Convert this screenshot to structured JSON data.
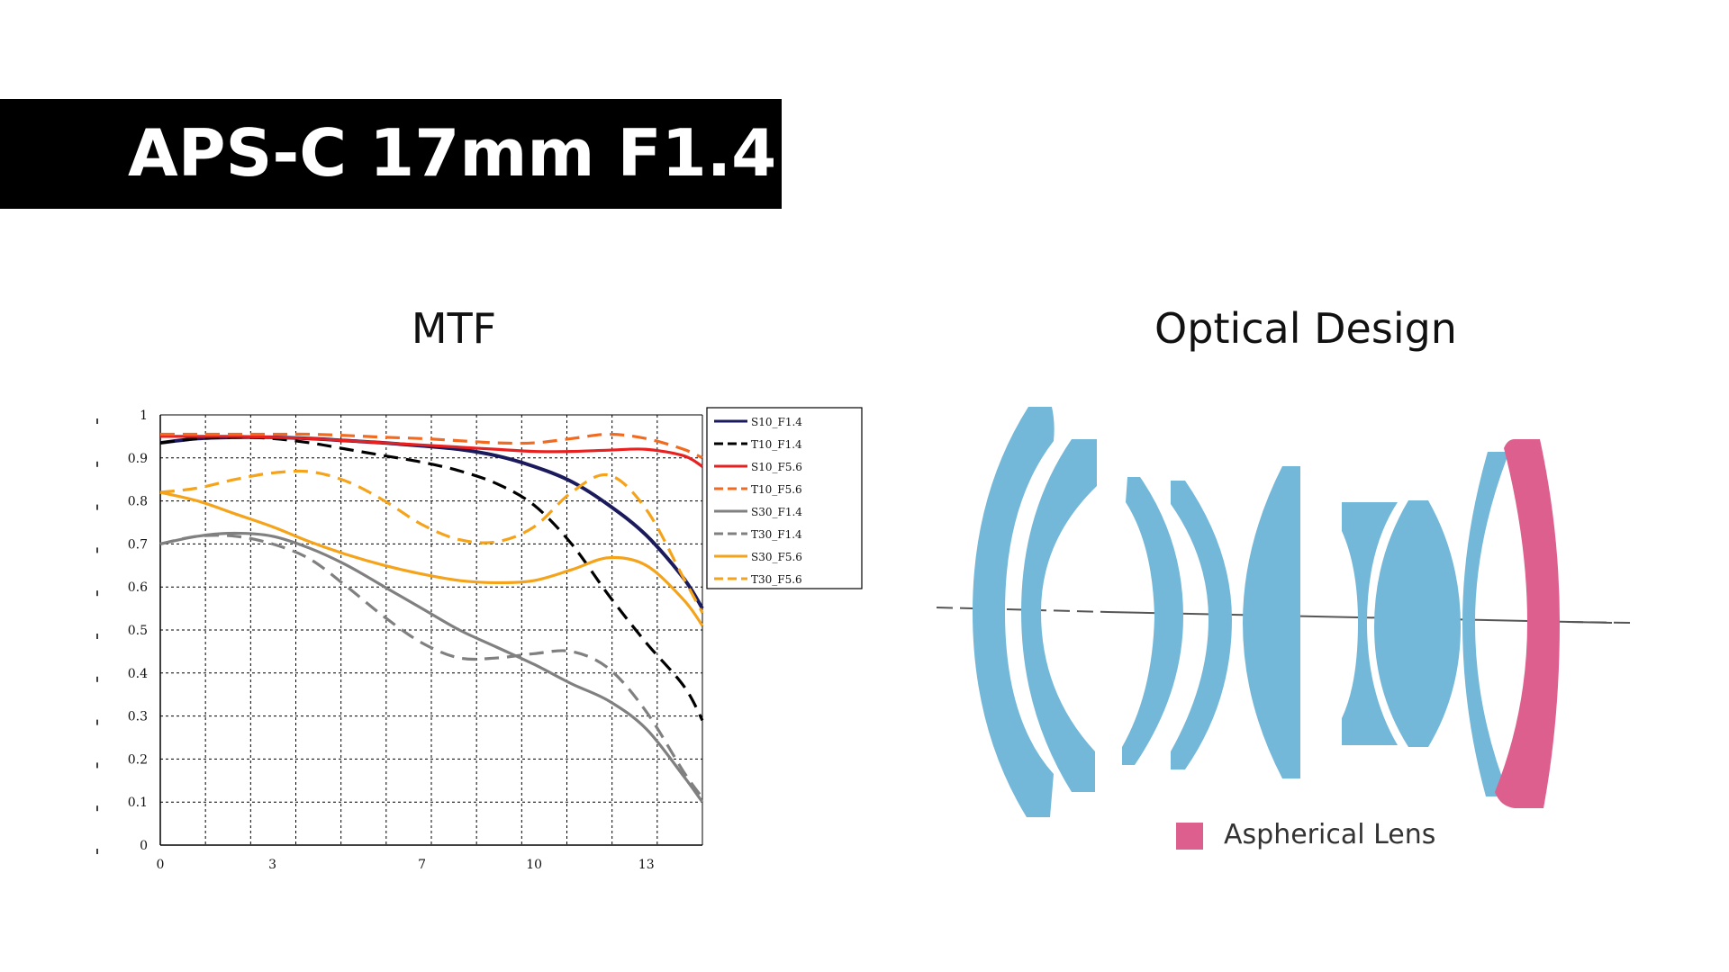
{
  "title": "APS-C 17mm F1.4",
  "mtf_heading": "MTF",
  "design_heading": "Optical Design",
  "aspherical_legend": {
    "label": "Aspherical Lens",
    "color": "#dd5f8e"
  },
  "lens_color": "#73b8d8",
  "aspherical_color": "#dd5f8e",
  "chart_data": {
    "type": "line",
    "title": "",
    "xlabel": "",
    "ylabel": "",
    "xlim": [
      0,
      14.5
    ],
    "ylim": [
      0,
      1
    ],
    "x_ticks": [
      0,
      3,
      7,
      10,
      13
    ],
    "y_ticks": [
      0,
      0.1,
      0.2,
      0.3,
      0.4,
      0.5,
      0.6,
      0.7,
      0.8,
      0.9,
      1
    ],
    "grid": true,
    "legend_position": "top-right",
    "series": [
      {
        "name": "S10_F1.4",
        "color": "#1a1a5c",
        "dash": false,
        "x": [
          0,
          1,
          2,
          3,
          4,
          5,
          6,
          7,
          8,
          9,
          10,
          11,
          12,
          13,
          14,
          14.5
        ],
        "y": [
          0.935,
          0.945,
          0.948,
          0.948,
          0.945,
          0.94,
          0.935,
          0.928,
          0.92,
          0.905,
          0.88,
          0.845,
          0.79,
          0.72,
          0.62,
          0.55
        ]
      },
      {
        "name": "T10_F1.4",
        "color": "#000000",
        "dash": true,
        "x": [
          0,
          1,
          2,
          3,
          4,
          5,
          6,
          7,
          8,
          9,
          10,
          11,
          12,
          13,
          14,
          14.5
        ],
        "y": [
          0.935,
          0.945,
          0.948,
          0.945,
          0.935,
          0.92,
          0.905,
          0.89,
          0.87,
          0.84,
          0.79,
          0.7,
          0.58,
          0.47,
          0.37,
          0.29
        ]
      },
      {
        "name": "S10_F5.6",
        "color": "#e8201f",
        "dash": false,
        "x": [
          0,
          1,
          2,
          3,
          4,
          5,
          6,
          7,
          8,
          9,
          10,
          11,
          12,
          13,
          14,
          14.5
        ],
        "y": [
          0.95,
          0.95,
          0.95,
          0.948,
          0.945,
          0.94,
          0.935,
          0.93,
          0.925,
          0.92,
          0.915,
          0.915,
          0.918,
          0.92,
          0.905,
          0.88
        ]
      },
      {
        "name": "T10_F5.6",
        "color": "#f26a1f",
        "dash": true,
        "x": [
          0,
          1,
          2,
          3,
          4,
          5,
          6,
          7,
          8,
          9,
          10,
          11,
          12,
          13,
          14,
          14.5
        ],
        "y": [
          0.955,
          0.955,
          0.955,
          0.955,
          0.955,
          0.952,
          0.948,
          0.945,
          0.94,
          0.935,
          0.935,
          0.945,
          0.955,
          0.945,
          0.92,
          0.9
        ]
      },
      {
        "name": "S30_F1.4",
        "color": "#808080",
        "dash": false,
        "x": [
          0,
          1,
          2,
          3,
          4,
          5,
          6,
          7,
          8,
          9,
          10,
          11,
          12,
          13,
          14,
          14.5
        ],
        "y": [
          0.7,
          0.718,
          0.725,
          0.718,
          0.69,
          0.65,
          0.6,
          0.55,
          0.5,
          0.46,
          0.42,
          0.375,
          0.335,
          0.27,
          0.16,
          0.1
        ]
      },
      {
        "name": "T30_F1.4",
        "color": "#808080",
        "dash": true,
        "x": [
          0,
          1,
          2,
          3,
          4,
          5,
          6,
          7,
          8,
          9,
          10,
          11,
          12,
          13,
          14,
          14.5
        ],
        "y": [
          0.7,
          0.718,
          0.718,
          0.7,
          0.665,
          0.6,
          0.53,
          0.47,
          0.435,
          0.435,
          0.445,
          0.45,
          0.41,
          0.31,
          0.17,
          0.11
        ]
      },
      {
        "name": "S30_F5.6",
        "color": "#f5a31a",
        "dash": false,
        "x": [
          0,
          1,
          2,
          3,
          4,
          5,
          6,
          7,
          8,
          9,
          10,
          11,
          12,
          13,
          14,
          14.5
        ],
        "y": [
          0.82,
          0.8,
          0.77,
          0.74,
          0.705,
          0.675,
          0.65,
          0.63,
          0.615,
          0.61,
          0.615,
          0.64,
          0.668,
          0.65,
          0.57,
          0.51
        ]
      },
      {
        "name": "T30_F5.6",
        "color": "#f5a31a",
        "dash": true,
        "x": [
          0,
          1,
          2,
          3,
          4,
          5,
          6,
          7,
          8,
          9,
          10,
          11,
          12,
          13,
          14,
          14.5
        ],
        "y": [
          0.82,
          0.83,
          0.85,
          0.865,
          0.868,
          0.845,
          0.8,
          0.745,
          0.71,
          0.705,
          0.74,
          0.82,
          0.86,
          0.78,
          0.62,
          0.54
        ]
      }
    ]
  }
}
